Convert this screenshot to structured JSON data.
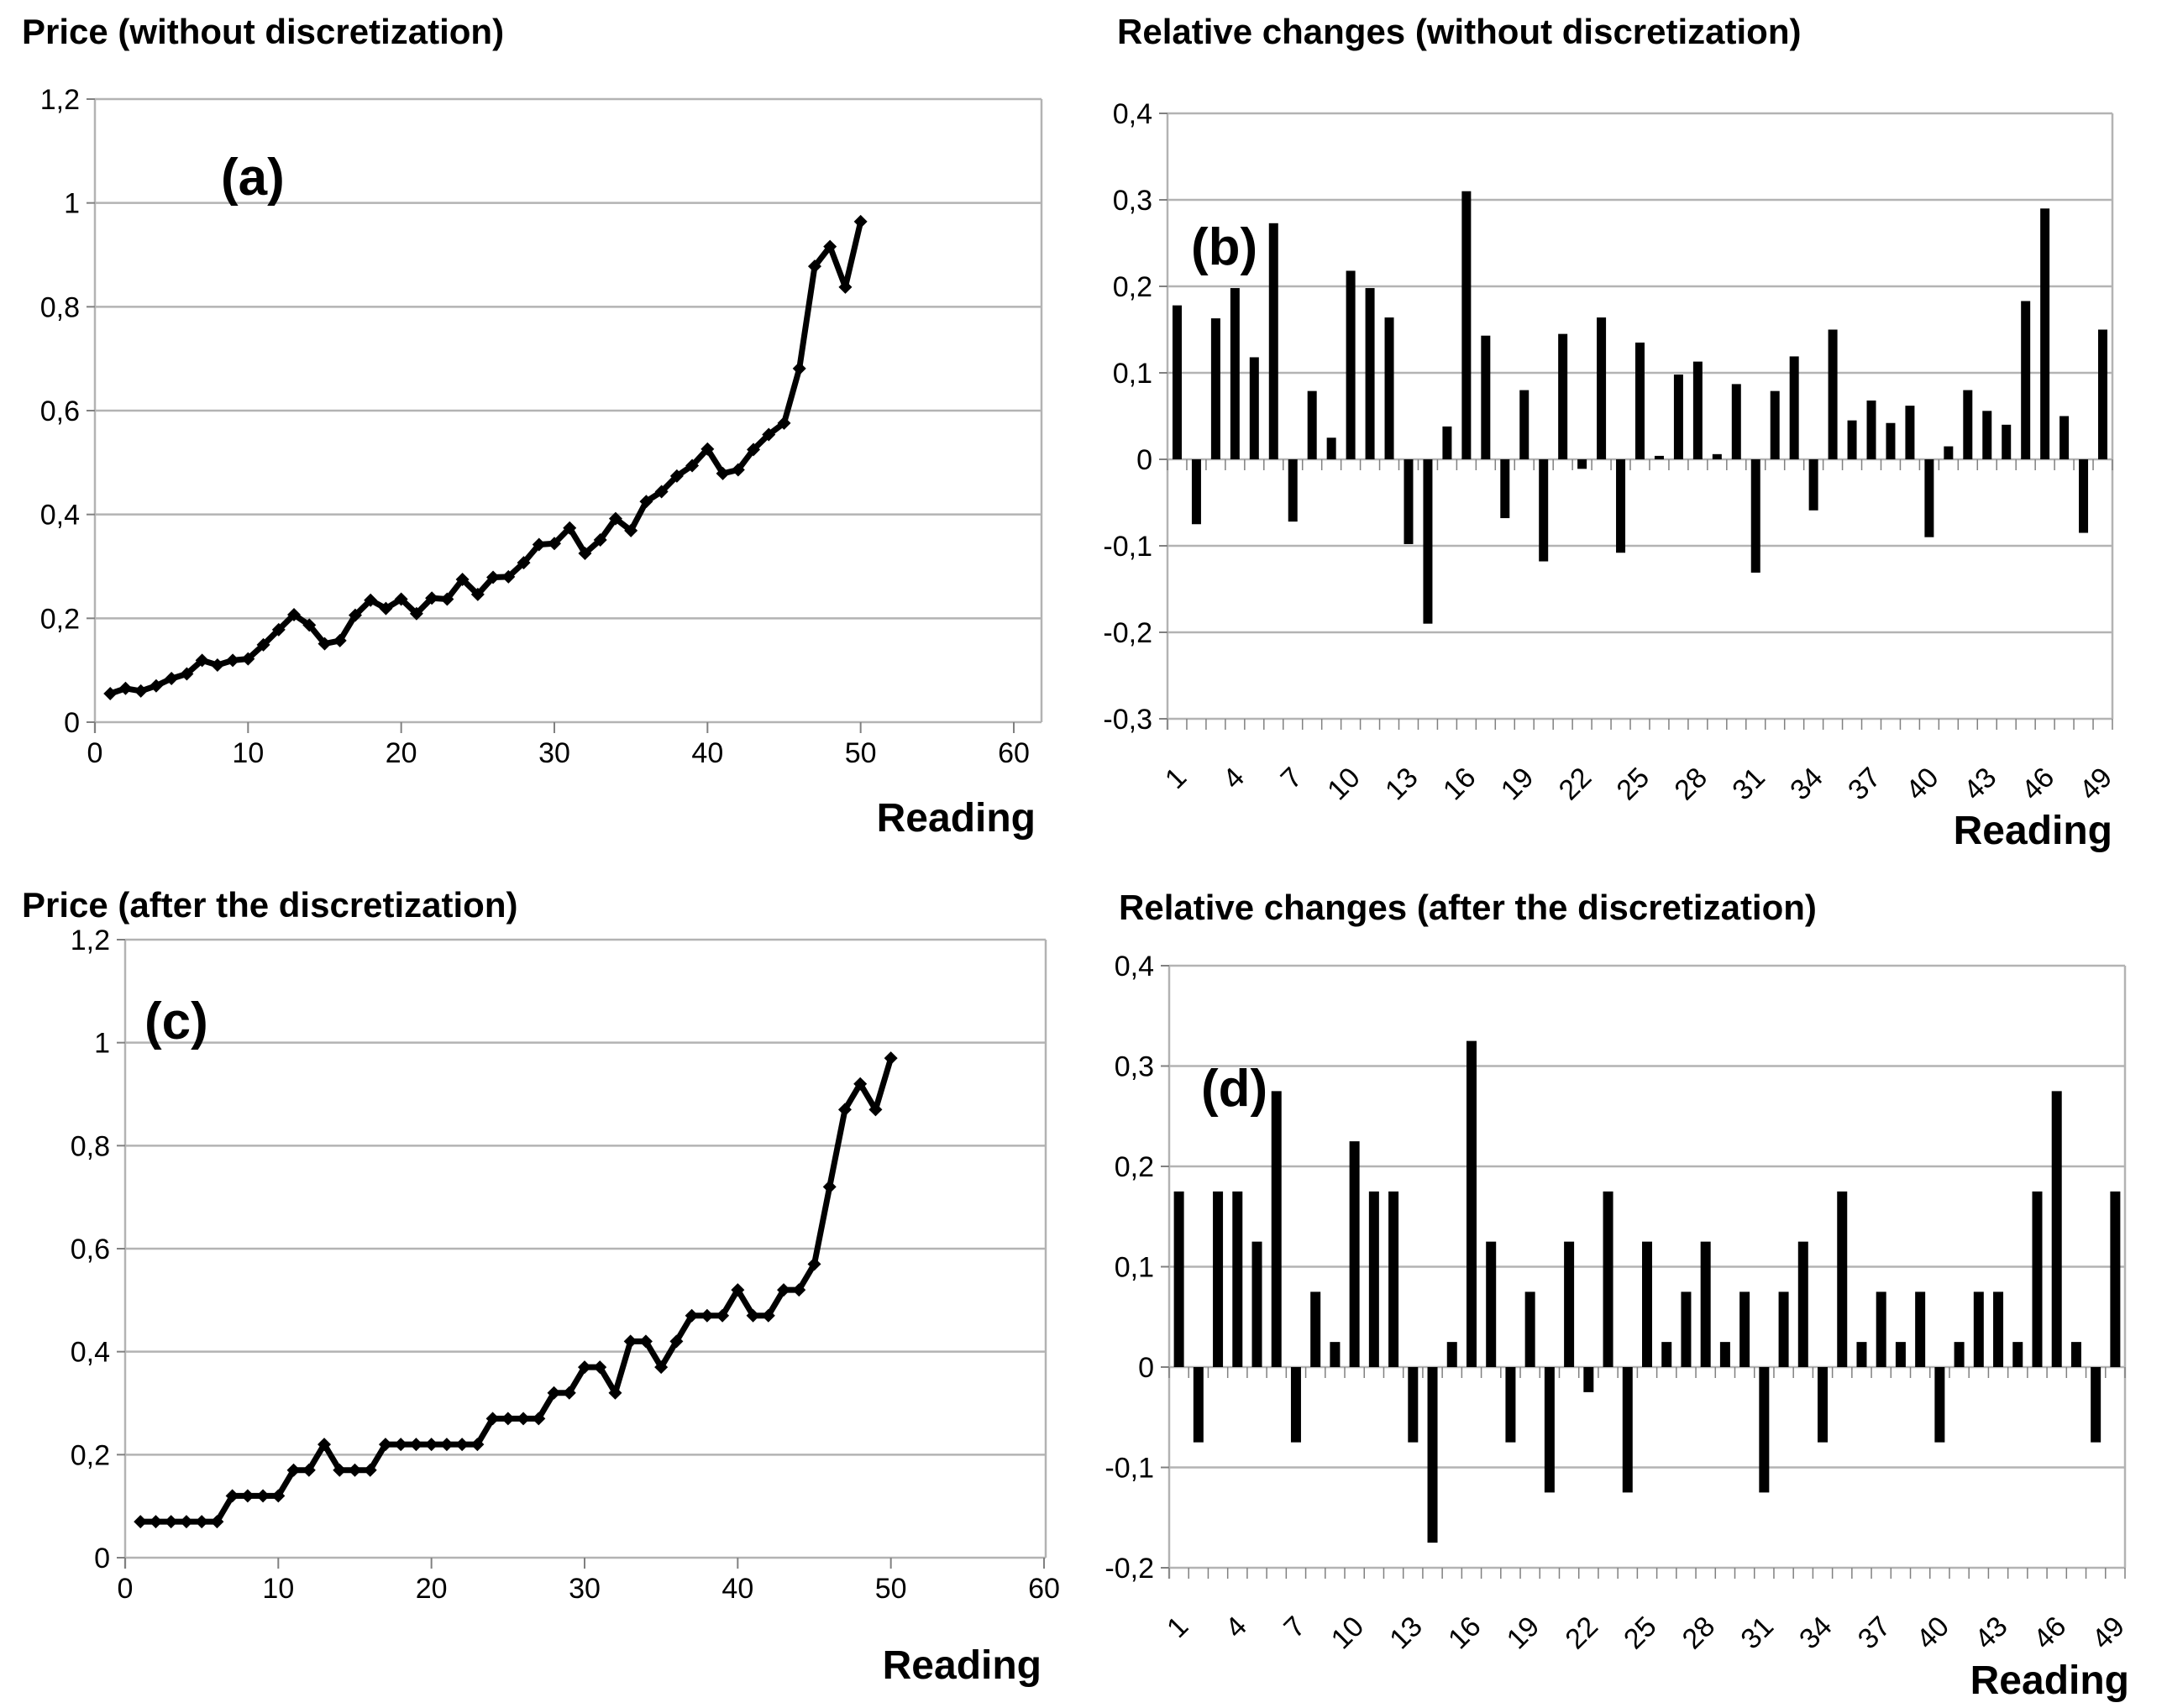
{
  "page": {
    "background": "#ffffff"
  },
  "colors": {
    "series": "#000000",
    "gridline": "#b3b3b3",
    "tick": "#808080",
    "text": "#000000"
  },
  "chart_data": [
    {
      "id": "a",
      "type": "line",
      "title": "Price (without discretization)",
      "panel_label": "(a)",
      "xlabel": "Reading",
      "ylabel": "",
      "xlim": [
        0,
        60
      ],
      "ylim": [
        0,
        1.2
      ],
      "grid": true,
      "legend": "none",
      "x_start": 1,
      "x": [
        1,
        2,
        3,
        4,
        5,
        6,
        7,
        8,
        9,
        10,
        11,
        12,
        13,
        14,
        15,
        16,
        17,
        18,
        19,
        20,
        21,
        22,
        23,
        24,
        25,
        26,
        27,
        28,
        29,
        30,
        31,
        32,
        33,
        34,
        35,
        36,
        37,
        38,
        39,
        40,
        41,
        42,
        43,
        44,
        45,
        46,
        47,
        48,
        49,
        50
      ],
      "values": [
        0.055,
        0.065,
        0.06,
        0.07,
        0.084,
        0.093,
        0.119,
        0.11,
        0.119,
        0.122,
        0.149,
        0.178,
        0.207,
        0.187,
        0.151,
        0.157,
        0.206,
        0.235,
        0.219,
        0.237,
        0.209,
        0.239,
        0.237,
        0.275,
        0.246,
        0.279,
        0.28,
        0.307,
        0.342,
        0.344,
        0.374,
        0.325,
        0.351,
        0.392,
        0.369,
        0.425,
        0.444,
        0.474,
        0.494,
        0.526,
        0.479,
        0.486,
        0.525,
        0.554,
        0.576,
        0.681,
        0.878,
        0.916,
        0.838,
        0.964
      ],
      "ytick_values": [
        0,
        0.2,
        0.4,
        0.6,
        0.8,
        1.0,
        1.2
      ],
      "yticks": [
        "0",
        "0,2",
        "0,4",
        "0,6",
        "0,8",
        "1",
        "1,2"
      ],
      "xtick_values": [
        0,
        10,
        20,
        30,
        40,
        50,
        60
      ],
      "xticks": [
        "0",
        "10",
        "20",
        "30",
        "40",
        "50",
        "60"
      ]
    },
    {
      "id": "b",
      "type": "bar",
      "title": "Relative changes (without discretization)",
      "panel_label": "(b)",
      "xlabel": "Reading",
      "ylabel": "",
      "xlim": [
        1,
        49
      ],
      "ylim": [
        -0.3,
        0.4
      ],
      "grid": true,
      "legend": "none",
      "x_start": 1,
      "values": [
        0.178,
        -0.075,
        0.163,
        0.198,
        0.118,
        0.273,
        -0.072,
        0.079,
        0.025,
        0.218,
        0.198,
        0.164,
        -0.098,
        -0.19,
        0.038,
        0.31,
        0.143,
        -0.068,
        0.08,
        -0.118,
        0.145,
        -0.011,
        0.164,
        -0.108,
        0.135,
        0.004,
        0.098,
        0.113,
        0.006,
        0.087,
        -0.131,
        0.079,
        0.119,
        -0.059,
        0.15,
        0.045,
        0.068,
        0.042,
        0.062,
        -0.09,
        0.015,
        0.08,
        0.056,
        0.04,
        0.183,
        0.29,
        0.05,
        -0.085,
        0.15
      ],
      "ytick_values": [
        -0.3,
        -0.2,
        -0.1,
        0,
        0.1,
        0.2,
        0.3,
        0.4
      ],
      "yticks": [
        "-0,3",
        "-0,2",
        "-0,1",
        "0",
        "0,1",
        "0,2",
        "0,3",
        "0,4"
      ],
      "xtick_values": [
        1,
        4,
        7,
        10,
        13,
        16,
        19,
        22,
        25,
        28,
        31,
        34,
        37,
        40,
        43,
        46,
        49
      ],
      "xticks": [
        "1",
        "4",
        "7",
        "10",
        "13",
        "16",
        "19",
        "22",
        "25",
        "28",
        "31",
        "34",
        "37",
        "40",
        "43",
        "46",
        "49"
      ]
    },
    {
      "id": "c",
      "type": "line",
      "title": "Price (after the discretization)",
      "panel_label": "(c)",
      "xlabel": "Reading",
      "ylabel": "",
      "xlim": [
        0,
        60
      ],
      "ylim": [
        0,
        1.2
      ],
      "grid": true,
      "legend": "none",
      "x_start": 1,
      "x": [
        1,
        2,
        3,
        4,
        5,
        6,
        7,
        8,
        9,
        10,
        11,
        12,
        13,
        14,
        15,
        16,
        17,
        18,
        19,
        20,
        21,
        22,
        23,
        24,
        25,
        26,
        27,
        28,
        29,
        30,
        31,
        32,
        33,
        34,
        35,
        36,
        37,
        38,
        39,
        40,
        41,
        42,
        43,
        44,
        45,
        46,
        47,
        48,
        49,
        50
      ],
      "values": [
        0.07,
        0.07,
        0.07,
        0.07,
        0.07,
        0.07,
        0.12,
        0.12,
        0.12,
        0.12,
        0.17,
        0.17,
        0.22,
        0.17,
        0.17,
        0.17,
        0.22,
        0.22,
        0.22,
        0.22,
        0.22,
        0.22,
        0.22,
        0.27,
        0.27,
        0.27,
        0.27,
        0.32,
        0.32,
        0.37,
        0.37,
        0.32,
        0.42,
        0.42,
        0.37,
        0.42,
        0.47,
        0.47,
        0.47,
        0.52,
        0.47,
        0.47,
        0.52,
        0.52,
        0.57,
        0.72,
        0.87,
        0.92,
        0.87,
        0.97
      ],
      "ytick_values": [
        0,
        0.2,
        0.4,
        0.6,
        0.8,
        1.0,
        1.2
      ],
      "yticks": [
        "0",
        "0,2",
        "0,4",
        "0,6",
        "0,8",
        "1",
        "1,2"
      ],
      "xtick_values": [
        0,
        10,
        20,
        30,
        40,
        50,
        60
      ],
      "xticks": [
        "0",
        "10",
        "20",
        "30",
        "40",
        "50",
        "60"
      ]
    },
    {
      "id": "d",
      "type": "bar",
      "title": "Relative changes (after the discretization)",
      "panel_label": "(d)",
      "xlabel": "Reading",
      "ylabel": "",
      "xlim": [
        1,
        49
      ],
      "ylim": [
        -0.2,
        0.4
      ],
      "grid": true,
      "legend": "none",
      "x_start": 1,
      "values": [
        0.175,
        -0.075,
        0.175,
        0.175,
        0.125,
        0.275,
        -0.075,
        0.075,
        0.025,
        0.225,
        0.175,
        0.175,
        -0.075,
        -0.175,
        0.025,
        0.325,
        0.125,
        -0.075,
        0.075,
        -0.125,
        0.125,
        -0.025,
        0.175,
        -0.125,
        0.125,
        0.025,
        0.075,
        0.125,
        0.025,
        0.075,
        -0.125,
        0.075,
        0.125,
        -0.075,
        0.175,
        0.025,
        0.075,
        0.025,
        0.075,
        -0.075,
        0.025,
        0.075,
        0.075,
        0.025,
        0.175,
        0.275,
        0.025,
        -0.075,
        0.175
      ],
      "ytick_values": [
        -0.2,
        -0.1,
        0,
        0.1,
        0.2,
        0.3,
        0.4
      ],
      "yticks": [
        "-0,2",
        "-0,1",
        "0",
        "0,1",
        "0,2",
        "0,3",
        "0,4"
      ],
      "xtick_values": [
        1,
        4,
        7,
        10,
        13,
        16,
        19,
        22,
        25,
        28,
        31,
        34,
        37,
        40,
        43,
        46,
        49
      ],
      "xticks": [
        "1",
        "4",
        "7",
        "10",
        "13",
        "16",
        "19",
        "22",
        "25",
        "28",
        "31",
        "34",
        "37",
        "40",
        "43",
        "46",
        "49"
      ]
    }
  ]
}
